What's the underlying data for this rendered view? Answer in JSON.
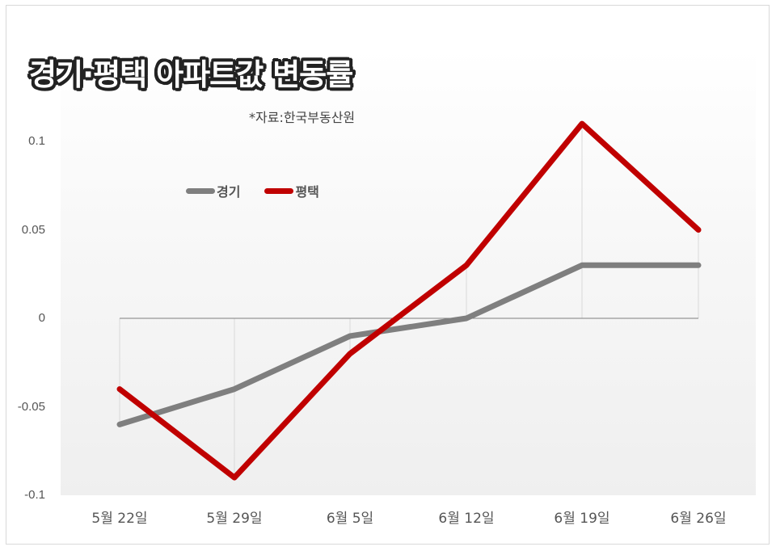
{
  "title": "경기·평택 아파트값 변동률",
  "source": "*자료:한국부동산원",
  "legend": [
    {
      "label": "경기",
      "color": "#7f7f7f"
    },
    {
      "label": "평택",
      "color": "#c00000"
    }
  ],
  "y_ticks": [
    "0.1",
    "0.05",
    "0",
    "-0.05",
    "-0.1"
  ],
  "x_ticks": [
    "5월 22일",
    "5월 29일",
    "6월 5일",
    "6월 12일",
    "6월 19일",
    "6월 26일"
  ],
  "chart_data": {
    "type": "line",
    "title": "경기·평택 아파트값 변동률",
    "subtitle": "*자료:한국부동산원",
    "xlabel": "",
    "ylabel": "",
    "categories": [
      "5월 22일",
      "5월 29일",
      "6월 5일",
      "6월 12일",
      "6월 19일",
      "6월 26일"
    ],
    "series": [
      {
        "name": "경기",
        "color": "#7f7f7f",
        "values": [
          -0.06,
          -0.04,
          -0.01,
          0.0,
          0.03,
          0.03
        ]
      },
      {
        "name": "평택",
        "color": "#c00000",
        "values": [
          -0.04,
          -0.09,
          -0.02,
          0.03,
          0.11,
          0.05
        ]
      }
    ],
    "ylim": [
      -0.1,
      0.15
    ],
    "y_ticks": [
      -0.1,
      -0.05,
      0,
      0.05,
      0.1,
      0.15
    ],
    "grid": false,
    "drop_lines": true,
    "legend_position": "top-left inside plot"
  }
}
